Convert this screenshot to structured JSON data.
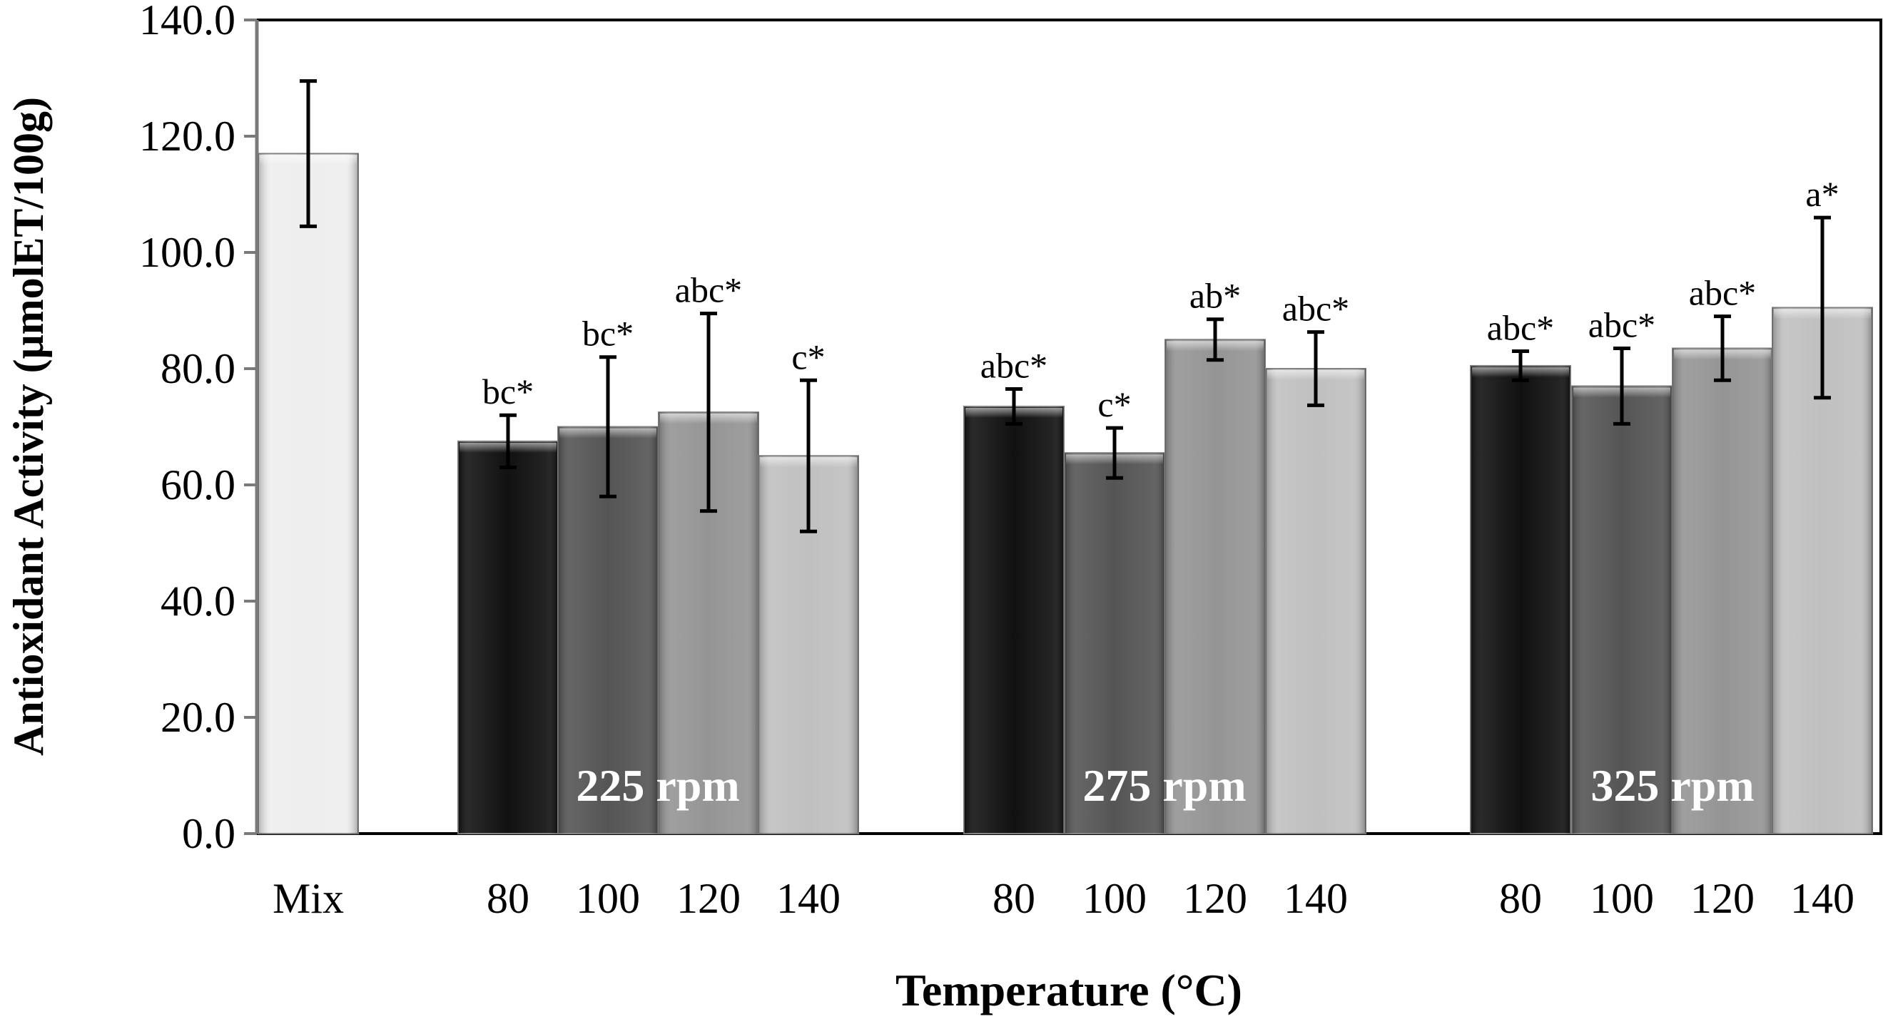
{
  "chart_data": {
    "type": "bar",
    "title": "",
    "xlabel": "Temperature (°C)",
    "ylabel": "Antioxidant Activity (μmolET/100g)",
    "ylim": [
      0,
      140
    ],
    "yticks": [
      "0.0",
      "20.0",
      "40.0",
      "60.0",
      "80.0",
      "100.0",
      "120.0",
      "140.0"
    ],
    "grid": false,
    "legend": "none",
    "bars": [
      {
        "group": "",
        "category": "Mix",
        "value": 117,
        "error": 12.5,
        "label": "",
        "color": "#eeeeee"
      },
      {
        "group": "225 rpm",
        "category": "80",
        "value": 67.5,
        "error": 4.5,
        "label": "bc*",
        "color": "#111111"
      },
      {
        "group": "225 rpm",
        "category": "100",
        "value": 70,
        "error": 12,
        "label": "bc*",
        "color": "#555555"
      },
      {
        "group": "225 rpm",
        "category": "120",
        "value": 72.5,
        "error": 17,
        "label": "abc*",
        "color": "#959595"
      },
      {
        "group": "225 rpm",
        "category": "140",
        "value": 65,
        "error": 13,
        "label": "c*",
        "color": "#c0c0c0"
      },
      {
        "group": "275 rpm",
        "category": "80",
        "value": 73.5,
        "error": 3,
        "label": "abc*",
        "color": "#111111"
      },
      {
        "group": "275 rpm",
        "category": "100",
        "value": 65.5,
        "error": 4.3,
        "label": "c*",
        "color": "#555555"
      },
      {
        "group": "275 rpm",
        "category": "120",
        "value": 85,
        "error": 3.5,
        "label": "ab*",
        "color": "#959595"
      },
      {
        "group": "275 rpm",
        "category": "140",
        "value": 80,
        "error": 6.3,
        "label": "abc*",
        "color": "#c0c0c0"
      },
      {
        "group": "325 rpm",
        "category": "80",
        "value": 80.5,
        "error": 2.5,
        "label": "abc*",
        "color": "#111111"
      },
      {
        "group": "325 rpm",
        "category": "100",
        "value": 77,
        "error": 6.5,
        "label": "abc*",
        "color": "#555555"
      },
      {
        "group": "325 rpm",
        "category": "120",
        "value": 83.5,
        "error": 5.5,
        "label": "abc*",
        "color": "#959595"
      },
      {
        "group": "325 rpm",
        "category": "140",
        "value": 90.5,
        "error": 15.5,
        "label": "a*",
        "color": "#c0c0c0"
      }
    ],
    "groups": [
      "225 rpm",
      "275 rpm",
      "325 rpm"
    ]
  }
}
